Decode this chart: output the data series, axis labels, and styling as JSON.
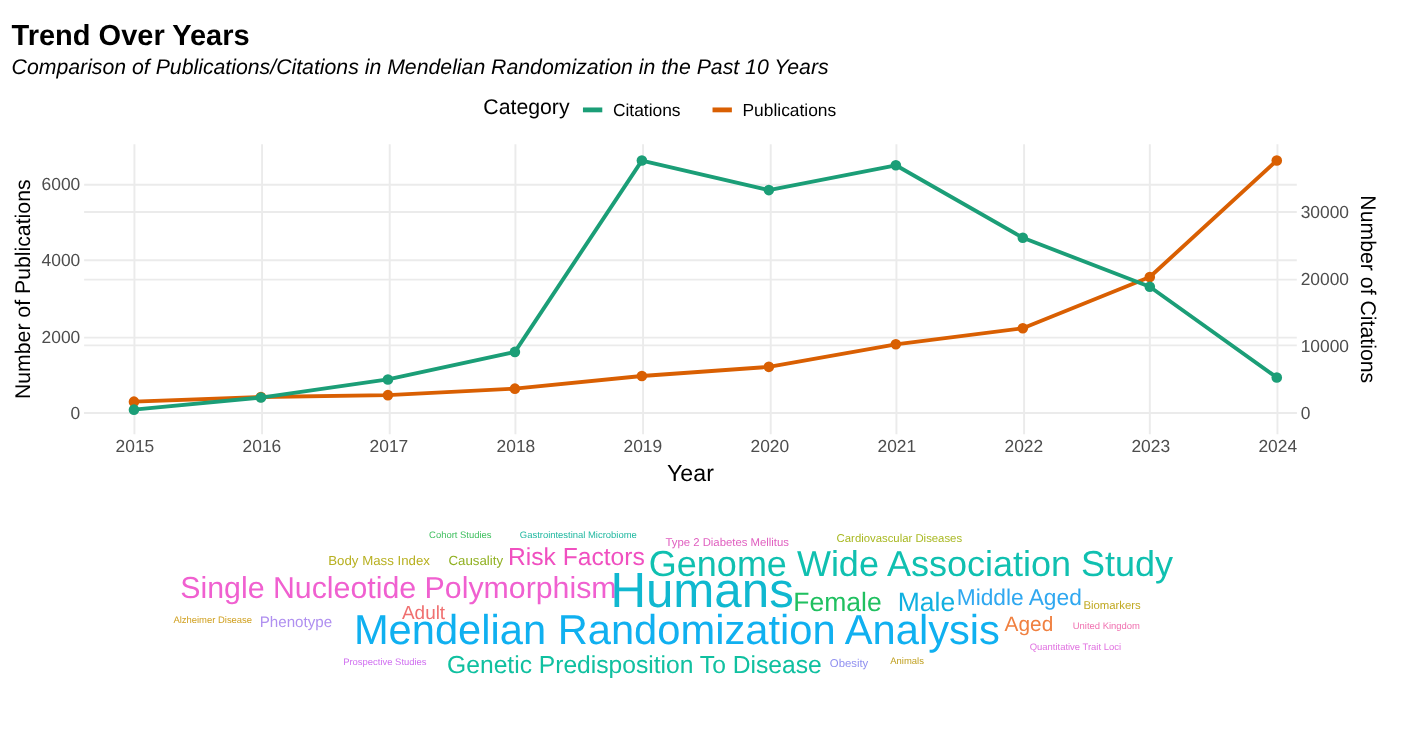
{
  "chart_data": [
    {
      "type": "line",
      "title": "Trend Over Years",
      "subtitle": "Comparison of Publications/Citations in Mendelian Randomization in the Past 10 Years",
      "xlabel": "Year",
      "ylabel": "Number of Publications",
      "y2label": "Number of Citations",
      "legend_title": "Category",
      "legend": "top",
      "grid": true,
      "marker": "circle",
      "x": [
        2015,
        2016,
        2017,
        2018,
        2019,
        2020,
        2021,
        2022,
        2023,
        2024
      ],
      "xlim": [
        2014.6,
        2024.15
      ],
      "xticks": [
        2015,
        2016,
        2017,
        2018,
        2019,
        2020,
        2021,
        2022,
        2023,
        2024
      ],
      "ylim": [
        -550,
        7040
      ],
      "yticks": [
        0,
        2000,
        4000,
        6000
      ],
      "y2lim": [
        -3130,
        40080
      ],
      "y2ticks": [
        0,
        10000,
        20000,
        30000
      ],
      "series": [
        {
          "name": "Citations",
          "color": "#1b9e77",
          "axis": "y2",
          "values": [
            400,
            2200,
            4900,
            9000,
            37500,
            33100,
            36800,
            26000,
            18700,
            5200
          ]
        },
        {
          "name": "Publications",
          "color": "#d95f02",
          "values": [
            280,
            400,
            450,
            620,
            950,
            1190,
            1780,
            2200,
            3540,
            6590
          ]
        }
      ]
    },
    {
      "type": "other",
      "categories": [
        "Cohort Studies",
        "Gastrointestinal Microbiome",
        "Type 2 Diabetes Mellitus",
        "Cardiovascular Diseases",
        "Body Mass Index",
        "Causality",
        "Risk Factors",
        "Genome Wide Association Study",
        "Single Nucleotide Polymorphism",
        "Humans",
        "Female",
        "Male",
        "Middle Aged",
        "Biomarkers",
        "Alzheimer Disease",
        "Phenotype",
        "Adult",
        "Mendelian Randomization Analysis",
        "Aged",
        "United Kingdom",
        "Quantitative Trait Loci",
        "Prospective Studies",
        "Genetic Predisposition To Disease",
        "Obesity",
        "Animals"
      ],
      "colors": [
        "#3fbf5f",
        "#20b8a0",
        "#e060c0",
        "#a8b820",
        "#b8b020",
        "#90b020",
        "#f050c0",
        "#10c0b0",
        "#f060d0",
        "#10b8d0",
        "#20c060",
        "#10b0e0",
        "#30a8f0",
        "#c0a820",
        "#d0a020",
        "#b090f0",
        "#f07070",
        "#10b0f0",
        "#f08040",
        "#f070b0",
        "#e070e0",
        "#d070f0",
        "#10c0a0",
        "#9090f0",
        "#c0a020"
      ]
    }
  ]
}
